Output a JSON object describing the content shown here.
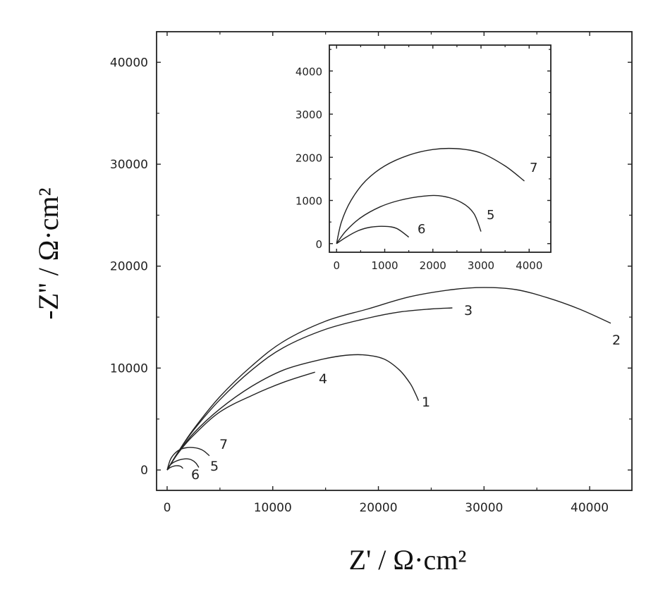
{
  "chart_data": [
    {
      "type": "line",
      "xlabel": "Z' / Ω·cm²",
      "ylabel": "-Z'' / Ω·cm²",
      "xlim": [
        -1000,
        44000
      ],
      "ylim": [
        -2000,
        43000
      ],
      "x_ticks": [
        0,
        10000,
        20000,
        30000,
        40000
      ],
      "y_ticks": [
        0,
        10000,
        20000,
        30000,
        40000
      ],
      "x_tick_labels": [
        "0",
        "10000",
        "20000",
        "30000",
        "40000"
      ],
      "y_tick_labels": [
        "0",
        "10000",
        "20000",
        "30000",
        "40000"
      ],
      "grid": false,
      "series": [
        {
          "name": "1",
          "x": [
            0,
            1000,
            2500,
            5000,
            8000,
            11000,
            14000,
            16500,
            18500,
            20500,
            22000,
            23000,
            23500,
            23800
          ],
          "y": [
            0,
            1600,
            3600,
            6000,
            8200,
            9800,
            10700,
            11200,
            11300,
            10900,
            9800,
            8500,
            7500,
            6800
          ]
        },
        {
          "name": "2",
          "x": [
            0,
            1000,
            2500,
            5000,
            8000,
            11000,
            15000,
            19000,
            23000,
            27000,
            30000,
            33000,
            36000,
            39000,
            42000
          ],
          "y": [
            0,
            1700,
            4000,
            7200,
            10200,
            12600,
            14600,
            15800,
            17000,
            17700,
            17900,
            17700,
            16900,
            15800,
            14400
          ]
        },
        {
          "name": "3",
          "x": [
            0,
            1000,
            2500,
            5000,
            8000,
            11000,
            15000,
            19000,
            22000,
            25000,
            27000
          ],
          "y": [
            0,
            1700,
            3900,
            6900,
            9800,
            12000,
            13800,
            14900,
            15500,
            15800,
            15900
          ]
        },
        {
          "name": "4",
          "x": [
            0,
            1000,
            2500,
            5000,
            8000,
            11000,
            14000
          ],
          "y": [
            0,
            1600,
            3400,
            5700,
            7300,
            8600,
            9600
          ]
        },
        {
          "name": "5",
          "x": [
            0,
            300,
            700,
            1200,
            1800,
            2300,
            2700,
            3000
          ],
          "y": [
            0,
            500,
            800,
            1000,
            1100,
            1000,
            700,
            250
          ]
        },
        {
          "name": "6",
          "x": [
            0,
            300,
            700,
            1000,
            1300,
            1500
          ],
          "y": [
            0,
            250,
            400,
            420,
            350,
            150
          ]
        },
        {
          "name": "7",
          "x": [
            0,
            300,
            700,
            1200,
            1800,
            2400,
            3000,
            3500,
            4000
          ],
          "y": [
            0,
            1000,
            1600,
            2000,
            2180,
            2200,
            2100,
            1850,
            1400
          ]
        }
      ]
    },
    {
      "type": "line",
      "xlim": [
        -150,
        4450
      ],
      "ylim": [
        -200,
        4600
      ],
      "x_ticks": [
        0,
        1000,
        2000,
        3000,
        4000
      ],
      "y_ticks": [
        0,
        1000,
        2000,
        3000,
        4000
      ],
      "x_tick_labels": [
        "0",
        "1000",
        "2000",
        "3000",
        "4000"
      ],
      "y_tick_labels": [
        "0",
        "1000",
        "2000",
        "3000",
        "4000"
      ],
      "grid": false,
      "series": [
        {
          "name": "5",
          "x": [
            0,
            200,
            500,
            900,
            1300,
            1800,
            2200,
            2600,
            2850,
            3000
          ],
          "y": [
            0,
            300,
            600,
            850,
            1000,
            1100,
            1100,
            950,
            700,
            280
          ]
        },
        {
          "name": "6",
          "x": [
            0,
            200,
            450,
            700,
            1000,
            1250,
            1500
          ],
          "y": [
            0,
            150,
            300,
            380,
            400,
            350,
            150
          ]
        },
        {
          "name": "7",
          "x": [
            0,
            100,
            300,
            600,
            1000,
            1500,
            2000,
            2500,
            3000,
            3500,
            3900
          ],
          "y": [
            0,
            500,
            1000,
            1450,
            1800,
            2050,
            2180,
            2200,
            2100,
            1800,
            1450
          ]
        }
      ]
    }
  ]
}
